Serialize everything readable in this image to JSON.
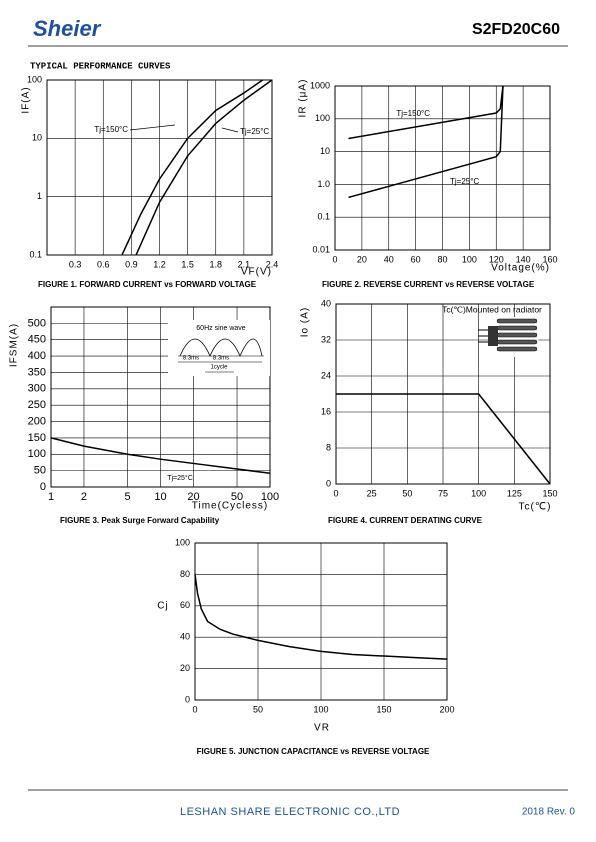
{
  "header": {
    "logo": "Sheier",
    "part_number": "S2FD20C60"
  },
  "section_title": "TYPICAL PERFORMANCE CURVES",
  "chart_data": [
    {
      "type": "line",
      "title": "FIGURE 1. FORWARD CURRENT vs FORWARD VOLTAGE",
      "y_label": "IF(A)",
      "x_label": "VF(V)",
      "xlim": [
        0,
        2.4
      ],
      "xticks": [
        0.3,
        0.6,
        0.9,
        1.2,
        1.5,
        1.8,
        2.1,
        2.4
      ],
      "ylim": [
        0.1,
        100
      ],
      "yticks": [
        0.1,
        1,
        10,
        100
      ],
      "ylog": true,
      "grid": true,
      "series": [
        {
          "name": "Tj=150°C",
          "color": "#000000",
          "x": [
            0.8,
            1.0,
            1.2,
            1.5,
            1.8,
            2.1,
            2.3
          ],
          "values": [
            0.1,
            0.5,
            2,
            10,
            30,
            60,
            100
          ]
        },
        {
          "name": "Tj=25°C",
          "color": "#000000",
          "x": [
            0.95,
            1.2,
            1.5,
            1.8,
            2.1,
            2.4
          ],
          "values": [
            0.1,
            0.8,
            5,
            18,
            45,
            100
          ]
        }
      ]
    },
    {
      "type": "line",
      "title": "FIGURE 2. REVERSE CURRENT vs REVERSE VOLTAGE",
      "y_label": "IR (μA)",
      "x_label": "Voltage(%)",
      "xlim": [
        0,
        160
      ],
      "xticks": [
        0,
        20,
        40,
        60,
        80,
        100,
        120,
        140,
        160
      ],
      "ylim": [
        0.01,
        1000
      ],
      "yticks": [
        0.01,
        0.1,
        {
          "value": 1,
          "label": "1.0"
        },
        10,
        100,
        1000
      ],
      "ylog": true,
      "grid": true,
      "series": [
        {
          "name": "Tj=150°C",
          "color": "#000000",
          "x": [
            10,
            120,
            123,
            125
          ],
          "values": [
            25,
            150,
            200,
            1000
          ]
        },
        {
          "name": "Tj=25°C",
          "color": "#000000",
          "x": [
            10,
            120,
            123,
            125
          ],
          "values": [
            0.4,
            7,
            10,
            1000
          ]
        }
      ]
    },
    {
      "type": "line",
      "title": "FIGURE 3. Peak Surge Forward Capability",
      "y_label": "IFSM(A)",
      "x_label": "Time(Cycless)",
      "xlim": [
        1,
        100
      ],
      "xticks": [
        1,
        2,
        5,
        10,
        20,
        50,
        100
      ],
      "xlog": true,
      "ylim": [
        0,
        550
      ],
      "yticks": [
        0,
        50,
        100,
        150,
        200,
        250,
        300,
        350,
        400,
        450,
        500
      ],
      "grid": true,
      "annotations": [
        "60Hz sine wave",
        "8.3ms",
        "8.3ms",
        "1cycle",
        "Tj=25°C"
      ],
      "series": [
        {
          "color": "#000000",
          "x": [
            1,
            2,
            5,
            10,
            20,
            50,
            100
          ],
          "values": [
            150,
            125,
            100,
            85,
            72,
            55,
            42
          ]
        }
      ]
    },
    {
      "type": "line",
      "title": "FIGURE 4. CURRENT DERATING CURVE",
      "y_label": "Io (A)",
      "x_label": "Tc(℃)",
      "xlim": [
        0,
        150
      ],
      "xticks": [
        0,
        25,
        50,
        75,
        100,
        125,
        150
      ],
      "ylim": [
        0,
        40
      ],
      "yticks": [
        0,
        8,
        16,
        24,
        32,
        40
      ],
      "grid": true,
      "annotations": [
        "Tc(℃)Mounted on radiator"
      ],
      "series": [
        {
          "color": "#000000",
          "x": [
            0,
            100,
            150
          ],
          "values": [
            20,
            20,
            0
          ]
        }
      ]
    },
    {
      "type": "line",
      "title": "FIGURE 5. JUNCTION CAPACITANCE vs REVERSE VOLTAGE",
      "y_label": "Cj",
      "x_label": "VR",
      "xlim": [
        0,
        200
      ],
      "xticks": [
        0,
        50,
        100,
        150,
        200
      ],
      "ylim": [
        0,
        100
      ],
      "yticks": [
        0,
        20,
        40,
        60,
        80,
        100
      ],
      "grid": true,
      "series": [
        {
          "color": "#000000",
          "x": [
            0,
            2,
            5,
            10,
            20,
            30,
            50,
            75,
            100,
            125,
            150,
            175,
            200
          ],
          "values": [
            80,
            68,
            58,
            50,
            45,
            42,
            38,
            34,
            31,
            29,
            28,
            27,
            26
          ]
        }
      ]
    }
  ],
  "footer": {
    "company": "LESHAN SHARE ELECTRONIC CO.,LTD",
    "revision": "2018  Rev. 0"
  }
}
